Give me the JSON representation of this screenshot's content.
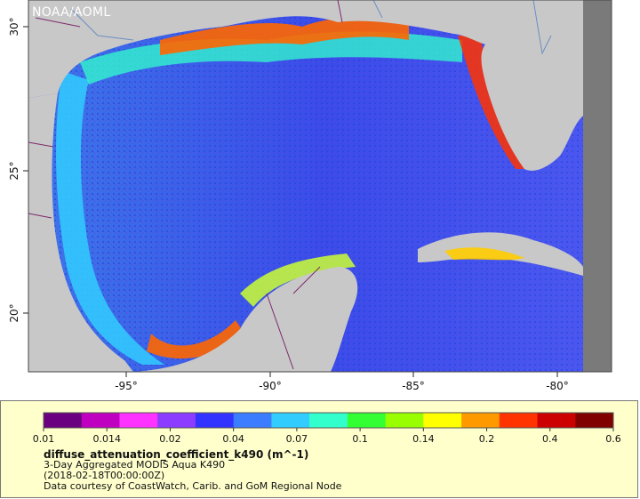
{
  "map": {
    "credit": "NOAA/AOML",
    "lon_ticks": [
      "-95°",
      "-90°",
      "-85°",
      "-80°"
    ],
    "lat_ticks": [
      "30°",
      "25°",
      "20°"
    ],
    "land_color": "#c8c8c8",
    "nodata_color": "#7a7a7a",
    "border_color": "#7d2a6b",
    "river_color": "#6a8fc4"
  },
  "legend": {
    "tick_labels": [
      "0.01",
      "0.014",
      "0.02",
      "0.04",
      "0.07",
      "0.1",
      "0.14",
      "0.2",
      "0.4",
      "0.6"
    ],
    "variable": "diffuse_attenuation_coefficient_k490 (m^-1)",
    "description": "3-Day Aggregated MODIS Aqua K490",
    "date": "(2018-02-18T00:00:00Z)",
    "source": "Data courtesy of CoastWatch, Carib. and GoM Regional Node",
    "colors": [
      "#6a0080",
      "#c000c0",
      "#ff33ff",
      "#8c3cff",
      "#3333ff",
      "#3c7cff",
      "#33ccff",
      "#33ffcc",
      "#33ff33",
      "#99ff00",
      "#ffff00",
      "#ff9900",
      "#ff3300",
      "#cc0000",
      "#800000"
    ]
  }
}
